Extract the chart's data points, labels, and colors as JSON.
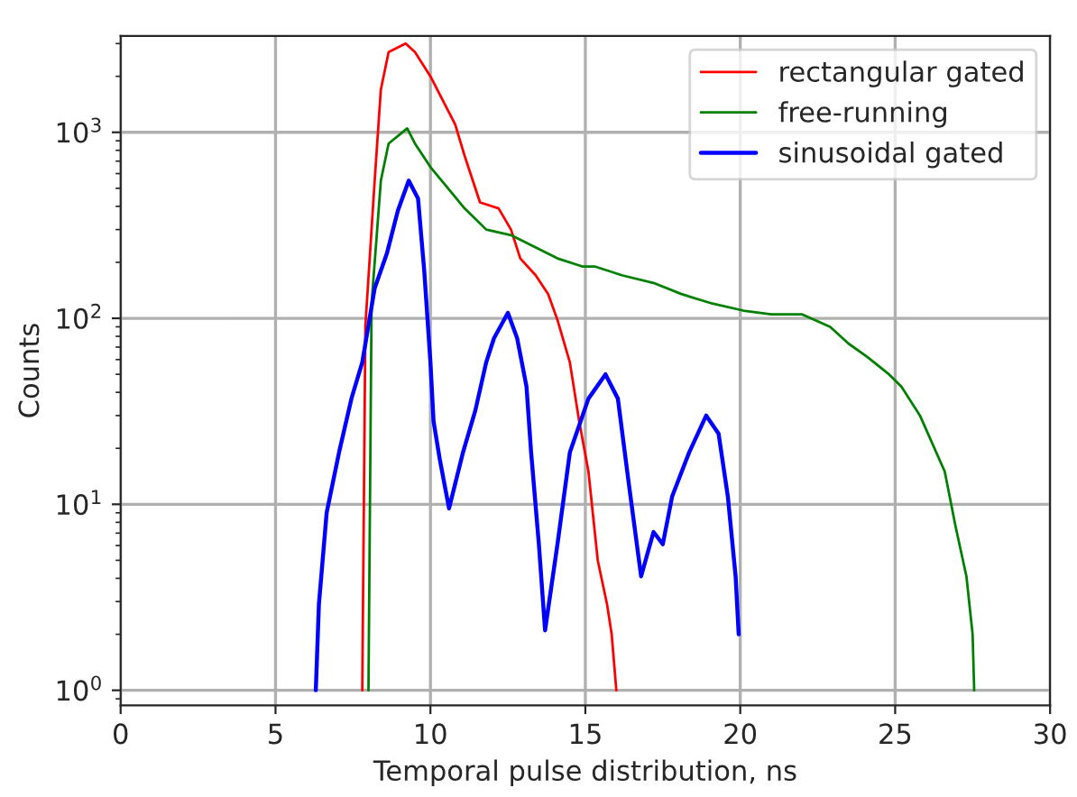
{
  "chart_data": {
    "type": "line",
    "xlabel": "Temporal pulse distribution, ns",
    "ylabel": "Counts",
    "log": "y",
    "grid": true,
    "legend": "top right",
    "marker": "none",
    "line_style": "solid",
    "xlim": [
      0,
      30
    ],
    "xticks": [
      0,
      5,
      10,
      15,
      20,
      25,
      30
    ],
    "ylim": [
      0.83,
      3300
    ],
    "yticks": [
      {
        "value": 1,
        "label": "10$^{0}$"
      },
      {
        "value": 10,
        "label": "10$^{1}$"
      },
      {
        "value": 100,
        "label": "10$^{2}$"
      },
      {
        "value": 1000,
        "label": "10$^{3}$"
      }
    ],
    "series": [
      {
        "name": "rectangular gated",
        "color": "#ff0000",
        "x": [
          7.8,
          7.9,
          8.2,
          8.4,
          8.65,
          9.2,
          9.5,
          10.0,
          10.8,
          11.1,
          11.6,
          12.2,
          12.6,
          12.9,
          13.4,
          13.8,
          14.1,
          14.5,
          14.8,
          15.1,
          15.4,
          15.7,
          15.85,
          16.0
        ],
        "values": [
          1,
          91,
          550,
          1700,
          2700,
          3000,
          2700,
          2000,
          1100,
          750,
          420,
          390,
          300,
          210,
          170,
          135,
          98,
          58,
          28,
          15,
          5,
          2.9,
          2,
          1
        ]
      },
      {
        "name": "free-running",
        "color": "#008000",
        "x": [
          8.0,
          8.1,
          8.4,
          8.65,
          9.25,
          9.5,
          10.0,
          10.7,
          11.1,
          11.8,
          12.6,
          13.4,
          14.1,
          14.9,
          15.3,
          16.2,
          17.2,
          18.1,
          19.1,
          20.1,
          21.0,
          22.0,
          22.9,
          23.5,
          24.1,
          24.8,
          25.2,
          25.8,
          26.6,
          26.95,
          27.3,
          27.5,
          27.55
        ],
        "values": [
          1,
          120,
          550,
          870,
          1050,
          870,
          650,
          470,
          390,
          300,
          280,
          240,
          210,
          190,
          190,
          170,
          155,
          135,
          120,
          110,
          105,
          105,
          90,
          73,
          62,
          50,
          43,
          30,
          15,
          7.6,
          4.1,
          2,
          1
        ]
      },
      {
        "name": "sinusoidal gated",
        "color": "#0000ff",
        "x": [
          6.3,
          6.4,
          6.65,
          7.05,
          7.45,
          7.8,
          8.2,
          8.6,
          8.95,
          9.3,
          9.6,
          9.8,
          10.0,
          10.1,
          10.3,
          10.6,
          11.05,
          11.45,
          11.8,
          12.05,
          12.5,
          12.8,
          13.1,
          13.25,
          13.5,
          13.7,
          14.1,
          14.5,
          15.1,
          15.65,
          16.05,
          16.4,
          16.8,
          17.2,
          17.5,
          17.8,
          18.35,
          18.9,
          19.3,
          19.6,
          19.85,
          19.95
        ],
        "values": [
          1,
          2.9,
          9,
          19,
          37,
          58,
          145,
          225,
          380,
          550,
          440,
          180,
          58,
          28,
          17.5,
          9.5,
          19,
          32,
          58,
          78,
          107,
          78,
          43,
          19,
          6.1,
          2.1,
          6.1,
          19,
          37,
          50,
          37,
          13,
          4.1,
          7.1,
          6.1,
          11,
          19,
          30,
          24,
          11,
          4.1,
          2
        ]
      }
    ]
  }
}
